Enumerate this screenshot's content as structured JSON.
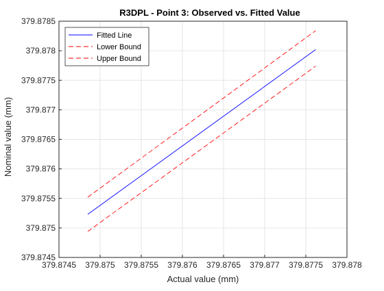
{
  "colors": {
    "fitted": "#0000ff",
    "bounds": "#ff0000",
    "grid": "#e6e6e6",
    "axis": "#262626",
    "text": "#262626",
    "background": "#ffffff"
  },
  "chart_data": {
    "type": "line",
    "title": "R3DPL - Point 3: Observed vs. Fitted Value",
    "xlabel": "Actual value (mm)",
    "ylabel": "Nominal value (mm)",
    "xlim": [
      379.8745,
      379.878
    ],
    "ylim": [
      379.8745,
      379.8785
    ],
    "x_ticks": [
      "379.8745",
      "379.875",
      "379.8755",
      "379.876",
      "379.8765",
      "379.877",
      "379.8775",
      "379.878"
    ],
    "y_ticks": [
      "379.8745",
      "379.875",
      "379.8755",
      "379.876",
      "379.8765",
      "379.877",
      "379.8775",
      "379.878",
      "379.8785"
    ],
    "grid": true,
    "legend_position": "top-left",
    "series": [
      {
        "name": "Fitted Line",
        "style": "solid",
        "color": "#0000ff",
        "x": [
          379.87485,
          379.87762
        ],
        "y": [
          379.87523,
          379.87802
        ]
      },
      {
        "name": "Lower Bound",
        "style": "dashed",
        "color": "#ff0000",
        "x": [
          379.87485,
          379.87762
        ],
        "y": [
          379.87494,
          379.87774
        ]
      },
      {
        "name": "Upper Bound",
        "style": "dashed",
        "color": "#ff0000",
        "x": [
          379.87485,
          379.87762
        ],
        "y": [
          379.87552,
          379.87834
        ]
      }
    ]
  }
}
